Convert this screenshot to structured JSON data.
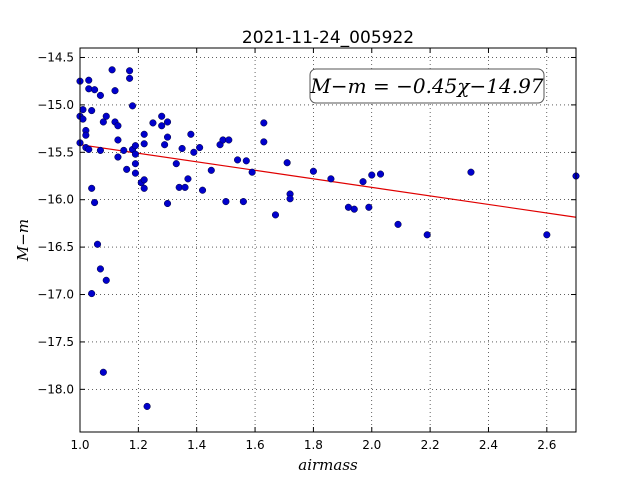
{
  "chart_data": {
    "type": "scatter",
    "title": "2021-11-24_005922",
    "xlabel": "airmass",
    "ylabel": "M−m",
    "xlim": [
      1.0,
      2.7
    ],
    "ylim": [
      -18.45,
      -14.4
    ],
    "y_inverted": true,
    "grid": true,
    "grid_style": "dotted",
    "xticks": [
      "1.0",
      "1.2",
      "1.4",
      "1.6",
      "1.8",
      "2.0",
      "2.2",
      "2.4",
      "2.6"
    ],
    "yticks": [
      "−14.5",
      "−15.0",
      "−15.5",
      "−16.0",
      "−16.5",
      "−17.0",
      "−17.5",
      "−18.0"
    ],
    "annotation": "M−m = −0.45χ−14.97",
    "fit_line": {
      "slope": -0.45,
      "intercept": -14.97,
      "color": "#e00000"
    },
    "point_color": "#0000cc",
    "series": [
      {
        "points": [
          [
            1.0,
            -14.75
          ],
          [
            1.0,
            -15.12
          ],
          [
            1.0,
            -15.4
          ],
          [
            1.01,
            -15.05
          ],
          [
            1.01,
            -15.15
          ],
          [
            1.02,
            -15.27
          ],
          [
            1.02,
            -15.32
          ],
          [
            1.02,
            -15.45
          ],
          [
            1.03,
            -14.74
          ],
          [
            1.03,
            -14.83
          ],
          [
            1.03,
            -15.47
          ],
          [
            1.04,
            -15.06
          ],
          [
            1.04,
            -15.88
          ],
          [
            1.04,
            -16.99
          ],
          [
            1.05,
            -16.03
          ],
          [
            1.05,
            -14.84
          ],
          [
            1.06,
            -16.47
          ],
          [
            1.07,
            -14.9
          ],
          [
            1.07,
            -15.48
          ],
          [
            1.07,
            -16.73
          ],
          [
            1.08,
            -15.18
          ],
          [
            1.08,
            -17.82
          ],
          [
            1.09,
            -15.12
          ],
          [
            1.09,
            -16.85
          ],
          [
            1.11,
            -14.63
          ],
          [
            1.12,
            -14.85
          ],
          [
            1.12,
            -15.18
          ],
          [
            1.13,
            -15.22
          ],
          [
            1.13,
            -15.37
          ],
          [
            1.13,
            -15.55
          ],
          [
            1.15,
            -15.48
          ],
          [
            1.16,
            -15.68
          ],
          [
            1.17,
            -14.64
          ],
          [
            1.17,
            -14.72
          ],
          [
            1.18,
            -15.01
          ],
          [
            1.18,
            -15.47
          ],
          [
            1.19,
            -15.43
          ],
          [
            1.19,
            -15.52
          ],
          [
            1.19,
            -15.62
          ],
          [
            1.19,
            -15.72
          ],
          [
            1.21,
            -15.82
          ],
          [
            1.22,
            -15.79
          ],
          [
            1.22,
            -15.88
          ],
          [
            1.22,
            -15.41
          ],
          [
            1.22,
            -15.31
          ],
          [
            1.23,
            -18.18
          ],
          [
            1.25,
            -15.19
          ],
          [
            1.28,
            -15.12
          ],
          [
            1.28,
            -15.22
          ],
          [
            1.29,
            -15.42
          ],
          [
            1.3,
            -15.34
          ],
          [
            1.3,
            -15.18
          ],
          [
            1.3,
            -16.04
          ],
          [
            1.33,
            -15.62
          ],
          [
            1.34,
            -15.87
          ],
          [
            1.35,
            -15.46
          ],
          [
            1.36,
            -15.87
          ],
          [
            1.37,
            -15.78
          ],
          [
            1.38,
            -15.31
          ],
          [
            1.39,
            -15.5
          ],
          [
            1.41,
            -15.45
          ],
          [
            1.42,
            -15.9
          ],
          [
            1.45,
            -15.69
          ],
          [
            1.48,
            -15.42
          ],
          [
            1.49,
            -15.37
          ],
          [
            1.5,
            -16.02
          ],
          [
            1.51,
            -15.37
          ],
          [
            1.54,
            -15.58
          ],
          [
            1.56,
            -16.02
          ],
          [
            1.57,
            -15.59
          ],
          [
            1.59,
            -15.71
          ],
          [
            1.63,
            -15.19
          ],
          [
            1.63,
            -15.39
          ],
          [
            1.67,
            -16.16
          ],
          [
            1.71,
            -15.61
          ],
          [
            1.72,
            -15.94
          ],
          [
            1.72,
            -15.99
          ],
          [
            1.8,
            -15.7
          ],
          [
            1.86,
            -15.78
          ],
          [
            1.92,
            -16.08
          ],
          [
            1.94,
            -16.1
          ],
          [
            1.97,
            -15.81
          ],
          [
            1.99,
            -16.08
          ],
          [
            2.0,
            -15.74
          ],
          [
            2.03,
            -15.73
          ],
          [
            2.09,
            -16.26
          ],
          [
            2.19,
            -16.37
          ],
          [
            2.34,
            -15.71
          ],
          [
            2.6,
            -16.37
          ],
          [
            2.7,
            -15.75
          ]
        ]
      }
    ]
  }
}
